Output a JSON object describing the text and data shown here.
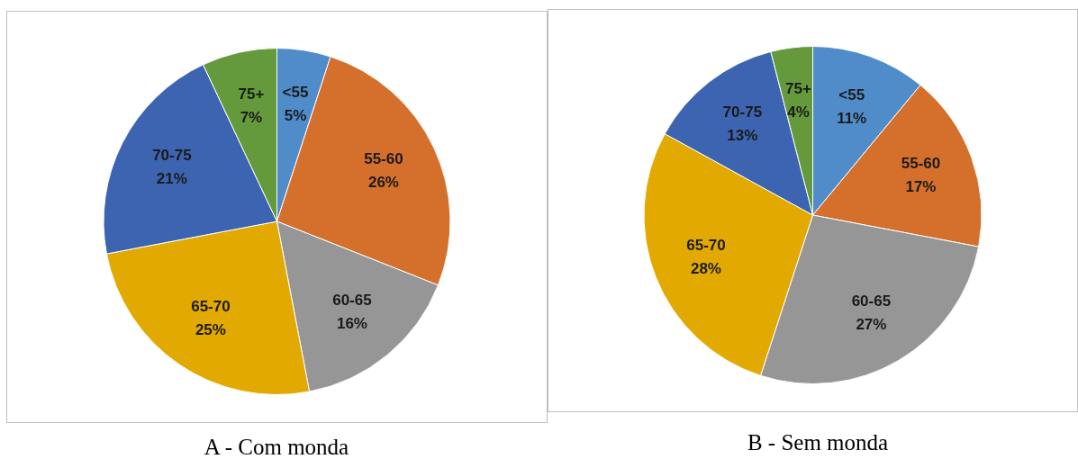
{
  "chart_data": [
    {
      "type": "pie",
      "title": "A - Com monda",
      "categories": [
        "<55",
        "55-60",
        "60-65",
        "65-70",
        "70-75",
        "75+"
      ],
      "values": [
        5,
        26,
        16,
        25,
        21,
        7
      ],
      "value_labels": [
        "5%",
        "26%",
        "16%",
        "25%",
        "21%",
        "7%"
      ],
      "colors": [
        "#4f8cc9",
        "#d4702c",
        "#969696",
        "#e2a900",
        "#3d64b0",
        "#649a3c"
      ],
      "legend": false
    },
    {
      "type": "pie",
      "title": "B - Sem monda",
      "categories": [
        "<55",
        "55-60",
        "60-65",
        "65-70",
        "70-75",
        "75+"
      ],
      "values": [
        11,
        17,
        27,
        28,
        13,
        4
      ],
      "value_labels": [
        "11%",
        "17%",
        "27%",
        "28%",
        "13%",
        "4%"
      ],
      "colors": [
        "#4f8cc9",
        "#d4702c",
        "#969696",
        "#e2a900",
        "#3d64b0",
        "#649a3c"
      ],
      "legend": false
    }
  ]
}
